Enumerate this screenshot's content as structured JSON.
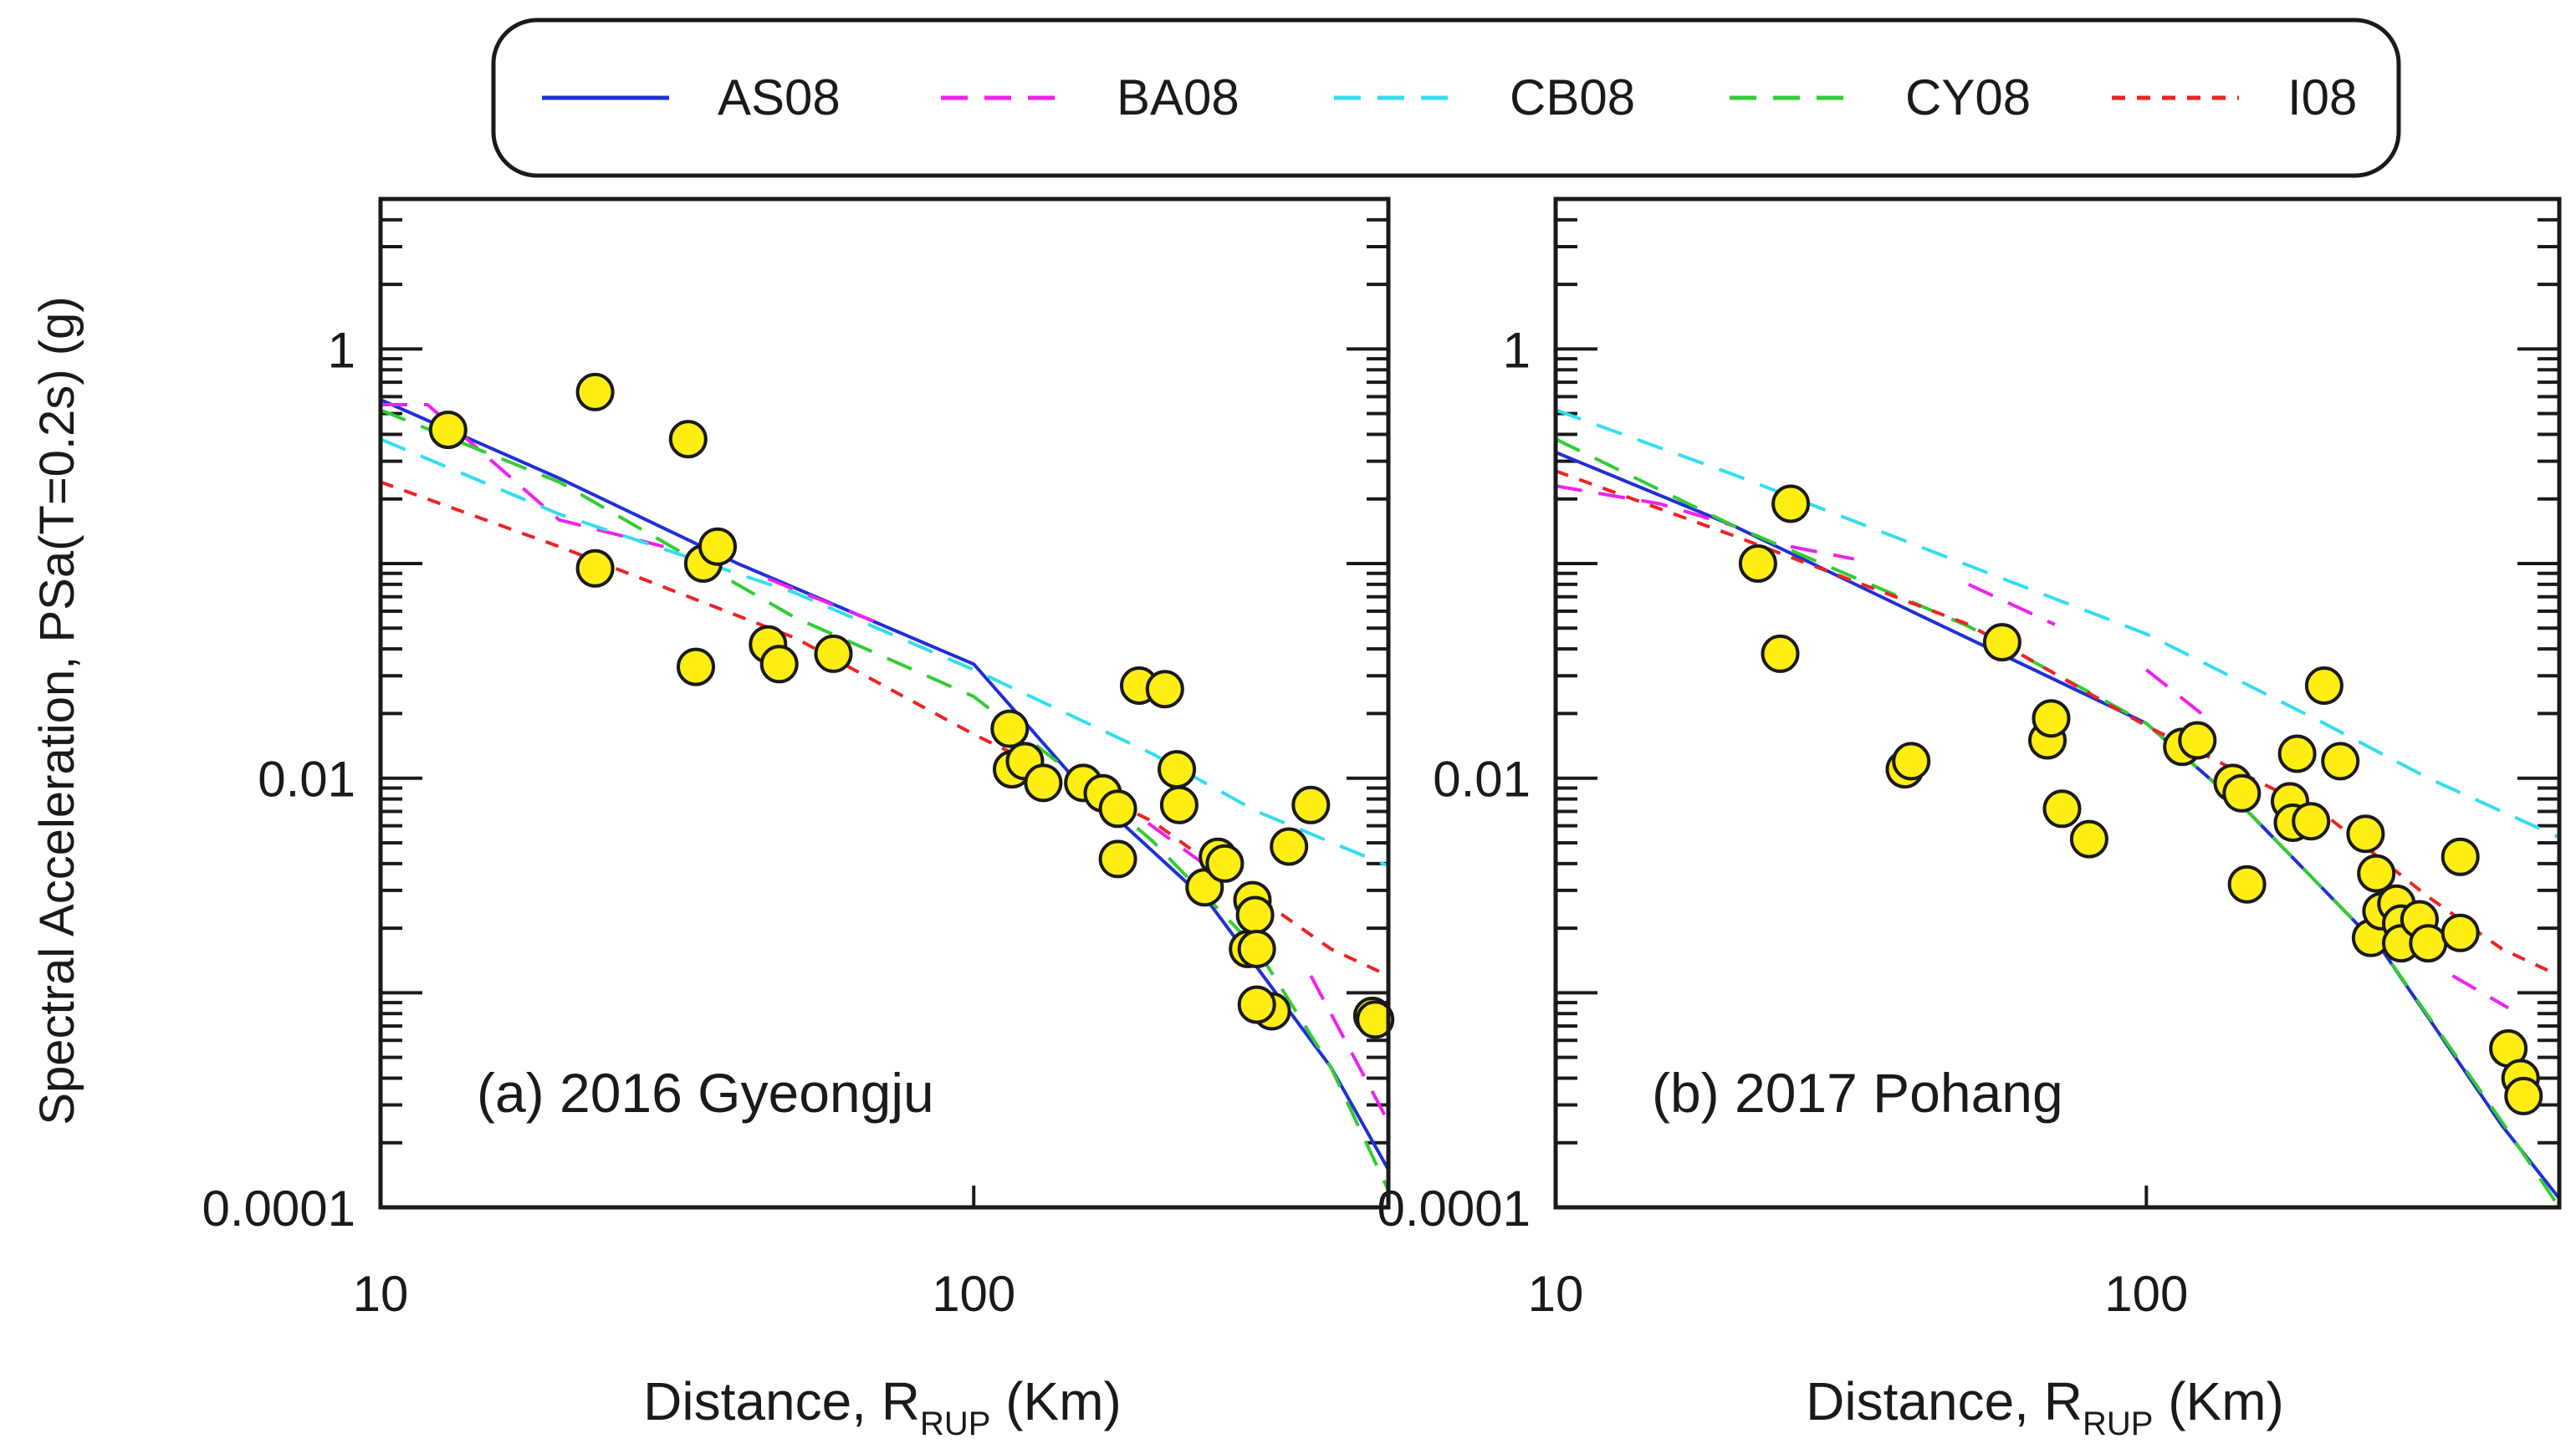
{
  "legend": {
    "entries": [
      {
        "label": "AS08",
        "color": "#1f2fd6",
        "dash": "solid"
      },
      {
        "label": "BA08",
        "color": "#ee22ee",
        "dash": "long"
      },
      {
        "label": "CB08",
        "color": "#33ddee",
        "dash": "long"
      },
      {
        "label": "CY08",
        "color": "#33cc33",
        "dash": "long"
      },
      {
        "label": "I08",
        "color": "#ee2222",
        "dash": "short"
      }
    ]
  },
  "axes": {
    "ylabel": "Spectral Acceleration, PSa(T=0.2s) (g)",
    "xlabel_main": "Distance, R",
    "xlabel_sub": "RUP",
    "xlabel_unit": " (Km)",
    "y_ticks": [
      "1",
      "0.01",
      "0.0001"
    ],
    "x_ticks": [
      "10",
      "100"
    ]
  },
  "chart_data": [
    {
      "type": "scatter",
      "title": "(a) 2016 Gyeongju",
      "xscale": "log",
      "yscale": "log",
      "xlim": [
        10,
        500
      ],
      "ylim": [
        0.0001,
        5
      ],
      "points": [
        [
          13,
          0.42
        ],
        [
          23,
          0.63
        ],
        [
          33,
          0.38
        ],
        [
          35,
          0.1
        ],
        [
          37,
          0.12
        ],
        [
          23,
          0.095
        ],
        [
          34,
          0.033
        ],
        [
          45,
          0.042
        ],
        [
          47,
          0.034
        ],
        [
          58,
          0.038
        ],
        [
          115,
          0.017
        ],
        [
          116,
          0.011
        ],
        [
          122,
          0.012
        ],
        [
          131,
          0.0095
        ],
        [
          153,
          0.0095
        ],
        [
          165,
          0.0085
        ],
        [
          175,
          0.0072
        ],
        [
          175,
          0.0042
        ],
        [
          190,
          0.027
        ],
        [
          210,
          0.026
        ],
        [
          220,
          0.011
        ],
        [
          222,
          0.0075
        ],
        [
          245,
          0.0031
        ],
        [
          258,
          0.0043
        ],
        [
          265,
          0.004
        ],
        [
          290,
          0.0016
        ],
        [
          295,
          0.0027
        ],
        [
          298,
          0.0023
        ],
        [
          300,
          0.0016
        ],
        [
          318,
          0.00082
        ],
        [
          340,
          0.0048
        ],
        [
          370,
          0.0075
        ],
        [
          300,
          0.00088
        ],
        [
          470,
          0.00078
        ],
        [
          475,
          0.00075
        ]
      ],
      "series": [
        {
          "name": "AS08",
          "x": [
            10,
            20,
            40,
            100,
            150,
            250,
            400,
            500
          ],
          "y": [
            0.58,
            0.25,
            0.1,
            0.034,
            0.0095,
            0.0026,
            0.00045,
            0.00015
          ]
        },
        {
          "name": "BA08",
          "x": [
            10,
            12,
            20,
            30
          ],
          "y": [
            0.55,
            0.55,
            0.16,
            0.12
          ]
        },
        {
          "name": "BA08",
          "x": [
            45,
            70
          ],
          "y": [
            0.085,
            0.052
          ]
        },
        {
          "name": "BA08",
          "x": [
            150,
            250
          ],
          "y": [
            0.0107,
            0.0038
          ]
        },
        {
          "name": "BA08",
          "x": [
            370,
            500
          ],
          "y": [
            0.0012,
            0.00025
          ]
        },
        {
          "name": "CB08",
          "x": [
            10,
            20,
            50,
            100,
            200,
            300,
            500
          ],
          "y": [
            0.38,
            0.17,
            0.073,
            0.032,
            0.013,
            0.007,
            0.0039
          ]
        },
        {
          "name": "CY08",
          "x": [
            10,
            20,
            50,
            100,
            150,
            200,
            300,
            400,
            500
          ],
          "y": [
            0.52,
            0.24,
            0.056,
            0.024,
            0.01,
            0.0051,
            0.0016,
            0.00045,
            0.00012
          ]
        },
        {
          "name": "I08",
          "x": [
            10,
            20,
            50,
            100,
            200,
            300,
            400,
            500
          ],
          "y": [
            0.24,
            0.12,
            0.045,
            0.016,
            0.0063,
            0.0028,
            0.0016,
            0.0012
          ]
        }
      ]
    },
    {
      "type": "scatter",
      "title": "(b) 2017 Pohang",
      "xscale": "log",
      "yscale": "log",
      "xlim": [
        10,
        500
      ],
      "ylim": [
        0.0001,
        5
      ],
      "points": [
        [
          25,
          0.19
        ],
        [
          22,
          0.1
        ],
        [
          24,
          0.038
        ],
        [
          39,
          0.011
        ],
        [
          40,
          0.012
        ],
        [
          57,
          0.043
        ],
        [
          68,
          0.015
        ],
        [
          69,
          0.019
        ],
        [
          72,
          0.0072
        ],
        [
          80,
          0.0052
        ],
        [
          115,
          0.014
        ],
        [
          122,
          0.015
        ],
        [
          140,
          0.0095
        ],
        [
          145,
          0.0085
        ],
        [
          148,
          0.0032
        ],
        [
          175,
          0.0078
        ],
        [
          177,
          0.0062
        ],
        [
          180,
          0.013
        ],
        [
          190,
          0.0063
        ],
        [
          200,
          0.027
        ],
        [
          213,
          0.012
        ],
        [
          235,
          0.0055
        ],
        [
          240,
          0.0018
        ],
        [
          245,
          0.0036
        ],
        [
          250,
          0.0024
        ],
        [
          265,
          0.0026
        ],
        [
          270,
          0.0021
        ],
        [
          270,
          0.0017
        ],
        [
          290,
          0.0022
        ],
        [
          300,
          0.0017
        ],
        [
          340,
          0.0043
        ],
        [
          340,
          0.0019
        ],
        [
          410,
          0.00055
        ],
        [
          430,
          0.0004
        ],
        [
          435,
          0.00033
        ]
      ],
      "series": [
        {
          "name": "AS08",
          "x": [
            10,
            20,
            40,
            100,
            150,
            250,
            400,
            500
          ],
          "y": [
            0.33,
            0.15,
            0.06,
            0.018,
            0.0068,
            0.0016,
            0.00024,
            0.00011
          ]
        },
        {
          "name": "BA08",
          "x": [
            10,
            15,
            20
          ],
          "y": [
            0.23,
            0.19,
            0.15
          ]
        },
        {
          "name": "BA08",
          "x": [
            25,
            32
          ],
          "y": [
            0.12,
            0.105
          ]
        },
        {
          "name": "BA08",
          "x": [
            50,
            70
          ],
          "y": [
            0.08,
            0.052
          ]
        },
        {
          "name": "BA08",
          "x": [
            100,
            130
          ],
          "y": [
            0.032,
            0.018
          ]
        },
        {
          "name": "BA08",
          "x": [
            330,
            410
          ],
          "y": [
            0.0012,
            0.00085
          ]
        },
        {
          "name": "CB08",
          "x": [
            10,
            20,
            50,
            100,
            200,
            300,
            500
          ],
          "y": [
            0.52,
            0.26,
            0.098,
            0.047,
            0.018,
            0.01,
            0.0053
          ]
        },
        {
          "name": "CY08",
          "x": [
            10,
            20,
            50,
            100,
            150,
            250,
            400,
            500
          ],
          "y": [
            0.38,
            0.15,
            0.051,
            0.018,
            0.0068,
            0.0016,
            0.00025,
            0.0001
          ]
        },
        {
          "name": "I08",
          "x": [
            10,
            20,
            50,
            100,
            200,
            300,
            400,
            500
          ],
          "y": [
            0.27,
            0.135,
            0.052,
            0.0175,
            0.0068,
            0.0028,
            0.0016,
            0.0012
          ]
        }
      ]
    }
  ]
}
